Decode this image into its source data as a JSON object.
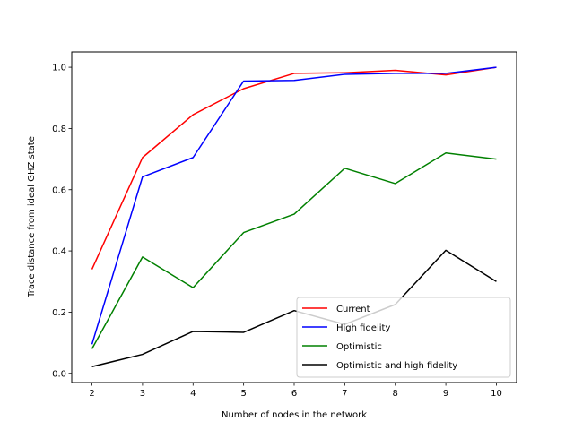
{
  "chart_data": {
    "type": "line",
    "title": "",
    "xlabel": "Number of nodes in the network",
    "ylabel": "Trace distance from ideal GHZ state",
    "x": [
      2,
      3,
      4,
      5,
      6,
      7,
      8,
      9,
      10
    ],
    "xticks": [
      "2",
      "3",
      "4",
      "5",
      "6",
      "7",
      "8",
      "9",
      "10"
    ],
    "yticks": [
      "0.0",
      "0.2",
      "0.4",
      "0.6",
      "0.8",
      "1.0"
    ],
    "xlim": [
      1.6,
      10.4
    ],
    "ylim": [
      -0.03,
      1.05
    ],
    "grid": false,
    "legend_position": "lower-right",
    "series": [
      {
        "name": "Current",
        "color": "#ff0000",
        "values": [
          0.34,
          0.705,
          0.845,
          0.93,
          0.98,
          0.982,
          0.99,
          0.975,
          1.0
        ]
      },
      {
        "name": "High fidelity",
        "color": "#0000ff",
        "values": [
          0.095,
          0.642,
          0.705,
          0.955,
          0.957,
          0.977,
          0.98,
          0.98,
          1.0
        ]
      },
      {
        "name": "Optimistic",
        "color": "#008000",
        "values": [
          0.08,
          0.38,
          0.28,
          0.46,
          0.52,
          0.67,
          0.62,
          0.72,
          0.7
        ]
      },
      {
        "name": "Optimistic and high fidelity",
        "color": "#000000",
        "values": [
          0.022,
          0.062,
          0.137,
          0.134,
          0.205,
          0.16,
          0.225,
          0.402,
          0.3
        ]
      }
    ]
  }
}
